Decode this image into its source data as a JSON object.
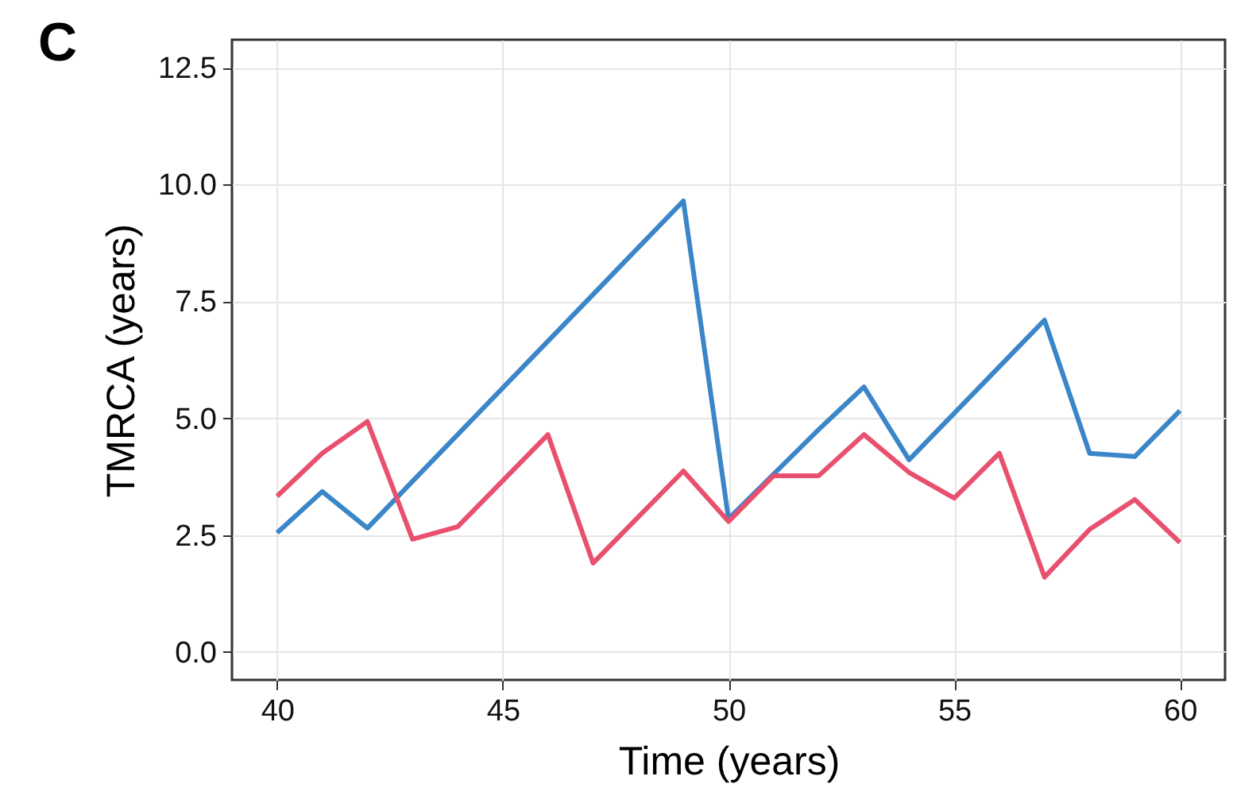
{
  "chart_data": {
    "type": "line",
    "xlabel": "Time (years)",
    "ylabel": "TMRCA (years)",
    "annotations": [
      "C"
    ],
    "xlim": [
      39,
      61
    ],
    "xticks": [
      40,
      45,
      50,
      55,
      60
    ],
    "ylim": [
      -0.6,
      13.1
    ],
    "yticks": [
      {
        "value": 0,
        "label": "0.0"
      },
      {
        "value": 2.5,
        "label": "2.5"
      },
      {
        "value": 5,
        "label": "5.0"
      },
      {
        "value": 7.5,
        "label": "7.5"
      },
      {
        "value": 10,
        "label": "10.0"
      },
      {
        "value": 12.5,
        "label": "12.5"
      }
    ],
    "grid": true,
    "series": [
      {
        "color": "#3a86c8",
        "x": [
          40,
          41,
          42,
          49,
          50,
          52,
          53,
          54,
          57,
          58,
          59,
          60
        ],
        "values": [
          2.55,
          3.43,
          2.65,
          9.65,
          2.85,
          4.76,
          5.67,
          4.11,
          7.1,
          4.25,
          4.18,
          5.16
        ]
      },
      {
        "color": "#e8506e",
        "x": [
          40,
          41,
          42,
          43,
          44,
          46,
          47,
          49,
          50,
          51,
          52,
          53,
          54,
          55,
          56,
          57,
          58,
          59,
          60
        ],
        "values": [
          3.33,
          4.25,
          4.93,
          2.41,
          2.68,
          4.65,
          1.9,
          3.87,
          2.79,
          3.77,
          3.77,
          4.65,
          3.84,
          3.29,
          4.25,
          1.6,
          2.62,
          3.26,
          2.34
        ]
      }
    ]
  }
}
